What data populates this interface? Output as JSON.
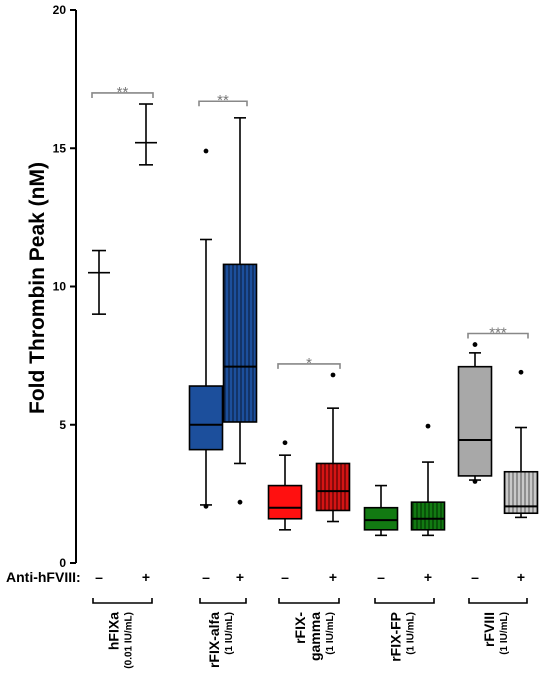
{
  "chart_data": {
    "type": "box",
    "ylabel": "Fold Thrombin Peak (nM)",
    "ylim": [
      0,
      20
    ],
    "yticks": [
      "0",
      "5",
      "10",
      "15",
      "20"
    ],
    "treatment_row_label": "Anti-hFVIII:",
    "treatment_minus": "–",
    "treatment_plus": "+",
    "groups": [
      {
        "name": "hFIXa",
        "dose": "(0.01 IU/mL)"
      },
      {
        "name": "rFIX-alfa",
        "dose": "(1 IU/mL)"
      },
      {
        "name_lines": [
          "rFIX-",
          "gamma"
        ],
        "dose": "(1 IU/mL)"
      },
      {
        "name": "rFIX-FP",
        "dose": "(1 IU/mL)"
      },
      {
        "name": "rFVIII",
        "dose": "(1 IU/mL)"
      }
    ],
    "boxes": [
      {
        "group": 0,
        "anti_hfviii": "–",
        "type": "mean_range",
        "min": 9.0,
        "mean": 10.5,
        "max": 11.3,
        "color": "#000000"
      },
      {
        "group": 0,
        "anti_hfviii": "+",
        "type": "mean_range",
        "min": 14.4,
        "mean": 15.2,
        "max": 16.6,
        "color": "#000000"
      },
      {
        "group": 1,
        "anti_hfviii": "–",
        "type": "box",
        "whisker_low": 2.1,
        "q1": 4.1,
        "median": 5.0,
        "q3": 6.4,
        "whisker_high": 11.7,
        "outliers": [
          2.05,
          14.9
        ],
        "color": "#1c4f9c",
        "hatched": false
      },
      {
        "group": 1,
        "anti_hfviii": "+",
        "type": "box",
        "whisker_low": 3.6,
        "q1": 5.1,
        "median": 7.1,
        "q3": 10.8,
        "whisker_high": 16.1,
        "outliers": [
          2.2
        ],
        "color": "#1c4f9c",
        "hatched": true
      },
      {
        "group": 2,
        "anti_hfviii": "–",
        "type": "box",
        "whisker_low": 1.2,
        "q1": 1.6,
        "median": 2.0,
        "q3": 2.8,
        "whisker_high": 3.9,
        "outliers": [
          4.35
        ],
        "color": "#ff1010",
        "hatched": false
      },
      {
        "group": 2,
        "anti_hfviii": "+",
        "type": "box",
        "whisker_low": 1.5,
        "q1": 1.9,
        "median": 2.6,
        "q3": 3.6,
        "whisker_high": 5.6,
        "outliers": [
          6.8
        ],
        "color": "#d41414",
        "hatched": true
      },
      {
        "group": 3,
        "anti_hfviii": "–",
        "type": "box",
        "whisker_low": 1.0,
        "q1": 1.2,
        "median": 1.55,
        "q3": 2.0,
        "whisker_high": 2.8,
        "outliers": [],
        "color": "#127a12",
        "hatched": false
      },
      {
        "group": 3,
        "anti_hfviii": "+",
        "type": "box",
        "whisker_low": 1.0,
        "q1": 1.2,
        "median": 1.6,
        "q3": 2.2,
        "whisker_high": 3.65,
        "outliers": [
          4.95
        ],
        "color": "#127a12",
        "hatched": true
      },
      {
        "group": 4,
        "anti_hfviii": "–",
        "type": "box",
        "whisker_low": 3.0,
        "q1": 3.15,
        "median": 4.45,
        "q3": 7.1,
        "whisker_high": 7.6,
        "outliers": [
          2.95,
          7.9
        ],
        "color": "#a8a8a8",
        "hatched": false
      },
      {
        "group": 4,
        "anti_hfviii": "+",
        "type": "box",
        "whisker_low": 1.65,
        "q1": 1.8,
        "median": 2.05,
        "q3": 3.3,
        "whisker_high": 4.9,
        "outliers": [
          6.9
        ],
        "color": "#a8a8a8",
        "hatched": true
      }
    ],
    "significance": [
      {
        "group": 0,
        "label": "**",
        "y": 17.0
      },
      {
        "group": 1,
        "label": "**",
        "y": 16.7
      },
      {
        "group": 2,
        "label": "*",
        "y": 7.2
      },
      {
        "group": 4,
        "label": "***",
        "y": 8.3
      }
    ]
  }
}
